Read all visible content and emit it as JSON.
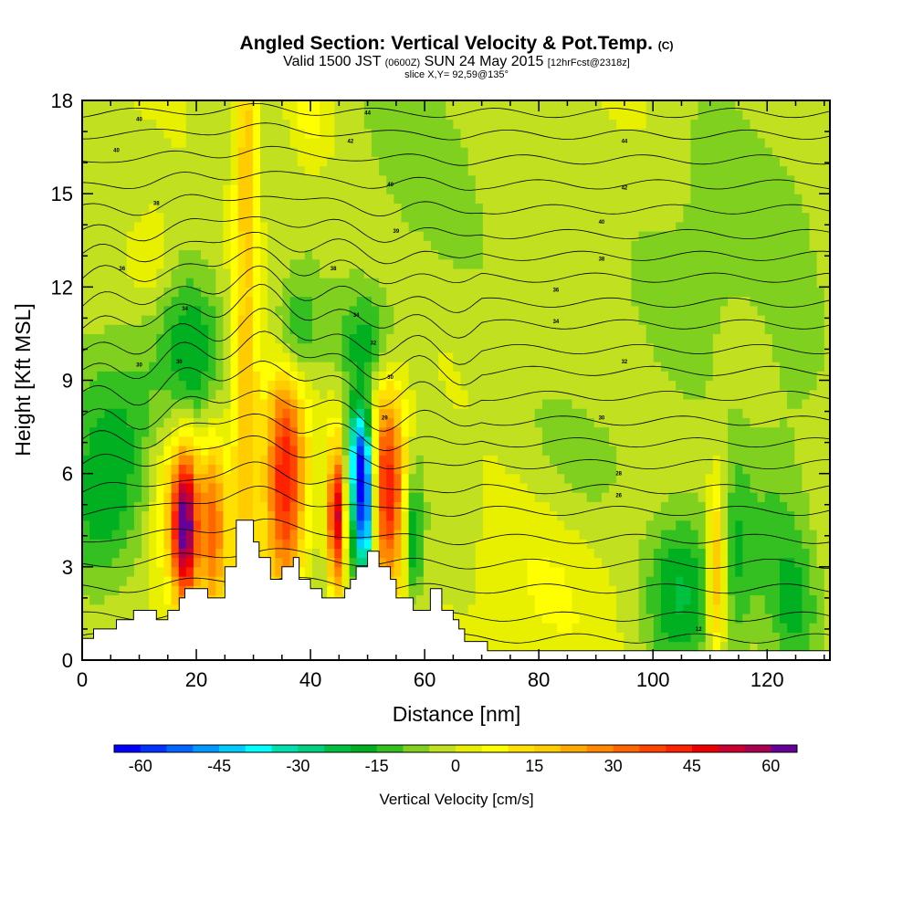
{
  "title": {
    "main": "Angled Section: Vertical Velocity & Pot.Temp.",
    "main_unit": "(C)",
    "valid_a": "Valid 1500 JST",
    "valid_b": "(0600Z)",
    "valid_c": "SUN 24 May 2015",
    "valid_d": "[12hrFcst@2318z]",
    "slice": "slice X,Y= 92,59@135°"
  },
  "chart_data": {
    "type": "heatmap",
    "xlabel": "Distance [nm]",
    "ylabel": "Height [Kft MSL]",
    "xlim": [
      0,
      131
    ],
    "ylim": [
      0,
      18
    ],
    "x_ticks": [
      0,
      20,
      40,
      60,
      80,
      100,
      120
    ],
    "y_ticks": [
      0,
      3,
      6,
      9,
      12,
      15,
      18
    ],
    "colorbar": {
      "label": "Vertical Velocity [cm/s]",
      "range": [
        -65,
        65
      ],
      "step": 5,
      "tick_values": [
        -60,
        -45,
        -30,
        -15,
        0,
        15,
        30,
        45,
        60
      ],
      "colors": [
        "#0000ff",
        "#0033ff",
        "#0066ff",
        "#0099ff",
        "#00ccff",
        "#00ffff",
        "#00e0b0",
        "#00d080",
        "#00c040",
        "#00b020",
        "#33c020",
        "#80d020",
        "#c0e020",
        "#e8f000",
        "#ffff00",
        "#ffe000",
        "#ffcc00",
        "#ffaa00",
        "#ff8800",
        "#ff6600",
        "#ff4400",
        "#ff2200",
        "#ee0000",
        "#cc0030",
        "#aa0050",
        "#660099"
      ]
    },
    "terrain_kft": [
      [
        0,
        0.7
      ],
      [
        2,
        0.7
      ],
      [
        2,
        1
      ],
      [
        6,
        1
      ],
      [
        6,
        1.3
      ],
      [
        9,
        1.3
      ],
      [
        9,
        1.6
      ],
      [
        13,
        1.6
      ],
      [
        13,
        1.3
      ],
      [
        15,
        1.3
      ],
      [
        15,
        1.6
      ],
      [
        17,
        1.6
      ],
      [
        17,
        2
      ],
      [
        18,
        2
      ],
      [
        18,
        2.3
      ],
      [
        22,
        2.3
      ],
      [
        22,
        2
      ],
      [
        25,
        2
      ],
      [
        25,
        3
      ],
      [
        27,
        3
      ],
      [
        27,
        4.5
      ],
      [
        30,
        4.5
      ],
      [
        30,
        3.8
      ],
      [
        31,
        3.8
      ],
      [
        31,
        3.3
      ],
      [
        33,
        3.3
      ],
      [
        33,
        2.6
      ],
      [
        35,
        2.6
      ],
      [
        35,
        3
      ],
      [
        37,
        3
      ],
      [
        37,
        3.3
      ],
      [
        38,
        3.3
      ],
      [
        38,
        2.6
      ],
      [
        40,
        2.6
      ],
      [
        40,
        2.3
      ],
      [
        42,
        2.3
      ],
      [
        42,
        2
      ],
      [
        46,
        2
      ],
      [
        46,
        2.3
      ],
      [
        47,
        2.3
      ],
      [
        47,
        2.6
      ],
      [
        48,
        2.6
      ],
      [
        48,
        3
      ],
      [
        50,
        3
      ],
      [
        50,
        3.5
      ],
      [
        52,
        3.5
      ],
      [
        52,
        3
      ],
      [
        54,
        3
      ],
      [
        54,
        2.6
      ],
      [
        55,
        2.6
      ],
      [
        55,
        2
      ],
      [
        58,
        2
      ],
      [
        58,
        1.6
      ],
      [
        61,
        1.6
      ],
      [
        61,
        2.3
      ],
      [
        63,
        2.3
      ],
      [
        63,
        1.6
      ],
      [
        65,
        1.6
      ],
      [
        65,
        1.3
      ],
      [
        66,
        1.3
      ],
      [
        66,
        1
      ],
      [
        67,
        1
      ],
      [
        67,
        0.6
      ],
      [
        71,
        0.6
      ],
      [
        71,
        0.3
      ],
      [
        131,
        0.3
      ]
    ],
    "theta_contours_kft": [
      0.7,
      1.4,
      2.3,
      3.1,
      3.9,
      4.8,
      5.5,
      6.3,
      7,
      7.7,
      8.5,
      9.3,
      10,
      10.8,
      11.5,
      12.3,
      13,
      13.7,
      14.5,
      15.3,
      16.1,
      16.9,
      17.6
    ],
    "theta_contour_labels": [
      {
        "x": 10,
        "y": 17.4,
        "text": "40"
      },
      {
        "x": 6,
        "y": 16.4,
        "text": "40"
      },
      {
        "x": 13,
        "y": 14.7,
        "text": "38"
      },
      {
        "x": 7,
        "y": 12.6,
        "text": "36"
      },
      {
        "x": 18,
        "y": 11.3,
        "text": "34"
      },
      {
        "x": 17,
        "y": 9.6,
        "text": "30"
      },
      {
        "x": 10,
        "y": 9.5,
        "text": "30"
      },
      {
        "x": 50,
        "y": 17.6,
        "text": "44"
      },
      {
        "x": 47,
        "y": 16.7,
        "text": "42"
      },
      {
        "x": 54,
        "y": 15.3,
        "text": "40"
      },
      {
        "x": 55,
        "y": 13.8,
        "text": "39"
      },
      {
        "x": 44,
        "y": 12.6,
        "text": "38"
      },
      {
        "x": 48,
        "y": 11.1,
        "text": "34"
      },
      {
        "x": 51,
        "y": 10.2,
        "text": "32"
      },
      {
        "x": 54,
        "y": 9.1,
        "text": "30"
      },
      {
        "x": 53,
        "y": 7.8,
        "text": "29"
      },
      {
        "x": 95,
        "y": 16.7,
        "text": "44"
      },
      {
        "x": 95,
        "y": 15.2,
        "text": "42"
      },
      {
        "x": 91,
        "y": 14.1,
        "text": "40"
      },
      {
        "x": 91,
        "y": 12.9,
        "text": "38"
      },
      {
        "x": 83,
        "y": 11.9,
        "text": "36"
      },
      {
        "x": 83,
        "y": 10.9,
        "text": "34"
      },
      {
        "x": 95,
        "y": 9.6,
        "text": "32"
      },
      {
        "x": 91,
        "y": 7.8,
        "text": "30"
      },
      {
        "x": 94,
        "y": 6,
        "text": "28"
      },
      {
        "x": 94,
        "y": 5.3,
        "text": "26"
      },
      {
        "x": 108,
        "y": 1,
        "text": "12"
      }
    ],
    "velocity_cells": [
      {
        "x": 18,
        "y": 4.2,
        "sx": 1.5,
        "sy": 1.7,
        "v": 55
      },
      {
        "x": 16.5,
        "y": 5.2,
        "sx": 3.5,
        "sy": 2.2,
        "v": 18
      },
      {
        "x": 23,
        "y": 4.3,
        "sx": 1.6,
        "sy": 2.2,
        "v": 28
      },
      {
        "x": 28.5,
        "y": 7.2,
        "sx": 1.6,
        "sy": 5,
        "v": 22
      },
      {
        "x": 29,
        "y": 16.5,
        "sx": 1.3,
        "sy": 2.2,
        "v": 20
      },
      {
        "x": 35.5,
        "y": 5.8,
        "sx": 2.4,
        "sy": 2.7,
        "v": 46
      },
      {
        "x": 44.5,
        "y": 4.5,
        "sx": 0.9,
        "sy": 1.6,
        "v": 55
      },
      {
        "x": 49.5,
        "y": 4.8,
        "sx": 1.4,
        "sy": 1.6,
        "v": -60
      },
      {
        "x": 48.5,
        "y": 6.7,
        "sx": 1.4,
        "sy": 1.2,
        "v": -38
      },
      {
        "x": 53.5,
        "y": 5.6,
        "sx": 2.2,
        "sy": 2.4,
        "v": 46
      },
      {
        "x": 58,
        "y": 4,
        "sx": 1.2,
        "sy": 1.5,
        "v": -22
      },
      {
        "x": 50,
        "y": 10.2,
        "sx": 4,
        "sy": 1.2,
        "v": -16
      },
      {
        "x": 37,
        "y": 10.5,
        "sx": 3,
        "sy": 1.3,
        "v": -20
      },
      {
        "x": 19,
        "y": 9.5,
        "sx": 4,
        "sy": 2,
        "v": -18
      },
      {
        "x": 8,
        "y": 7.2,
        "sx": 6,
        "sy": 2.5,
        "v": -14
      },
      {
        "x": 2,
        "y": 4.2,
        "sx": 4,
        "sy": 2,
        "v": -12
      },
      {
        "x": 105,
        "y": 2.3,
        "sx": 4.5,
        "sy": 1.9,
        "v": -22
      },
      {
        "x": 111,
        "y": 2.8,
        "sx": 1,
        "sy": 2,
        "v": 26
      },
      {
        "x": 115,
        "y": 3.4,
        "sx": 1.6,
        "sy": 2.5,
        "v": -10
      },
      {
        "x": 120,
        "y": 3.5,
        "sx": 4,
        "sy": 2.5,
        "v": -8
      },
      {
        "x": 125,
        "y": 1.8,
        "sx": 2.5,
        "sy": 1.5,
        "v": -10
      },
      {
        "x": 60,
        "y": 15.5,
        "sx": 12,
        "sy": 3,
        "v": -7
      },
      {
        "x": 110,
        "y": 13,
        "sx": 8,
        "sy": 3.5,
        "v": -6
      },
      {
        "x": 125,
        "y": 9,
        "sx": 5,
        "sy": 5,
        "v": -6
      },
      {
        "x": 90,
        "y": 6.5,
        "sx": 8,
        "sy": 1.5,
        "v": -5
      },
      {
        "x": 12,
        "y": 13,
        "sx": 3,
        "sy": 1.2,
        "v": 9
      },
      {
        "x": 40,
        "y": 17.5,
        "sx": 3,
        "sy": 1.3,
        "v": 9
      },
      {
        "x": 78,
        "y": 2.5,
        "sx": 10,
        "sy": 2.2,
        "v": 5
      }
    ]
  }
}
